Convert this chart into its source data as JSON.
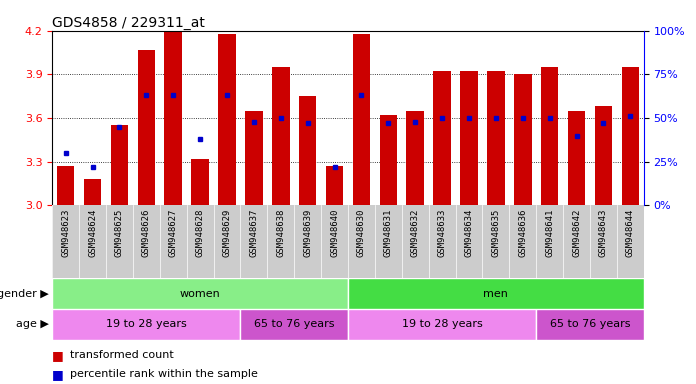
{
  "title": "GDS4858 / 229311_at",
  "samples": [
    "GSM948623",
    "GSM948624",
    "GSM948625",
    "GSM948626",
    "GSM948627",
    "GSM948628",
    "GSM948629",
    "GSM948637",
    "GSM948638",
    "GSM948639",
    "GSM948640",
    "GSM948630",
    "GSM948631",
    "GSM948632",
    "GSM948633",
    "GSM948634",
    "GSM948635",
    "GSM948636",
    "GSM948641",
    "GSM948642",
    "GSM948643",
    "GSM948644"
  ],
  "bar_heights": [
    3.27,
    3.18,
    3.55,
    4.07,
    4.19,
    3.32,
    4.18,
    3.65,
    3.95,
    3.75,
    3.27,
    4.18,
    3.62,
    3.65,
    3.92,
    3.92,
    3.92,
    3.9,
    3.95,
    3.65,
    3.68,
    3.95
  ],
  "blue_dot_percentiles": [
    30,
    22,
    45,
    63,
    63,
    38,
    63,
    48,
    50,
    47,
    22,
    63,
    47,
    48,
    50,
    50,
    50,
    50,
    50,
    40,
    47,
    51
  ],
  "ylim": [
    3.0,
    4.2
  ],
  "y_ticks_left": [
    3.0,
    3.3,
    3.6,
    3.9,
    4.2
  ],
  "y_ticks_right": [
    0,
    25,
    50,
    75,
    100
  ],
  "bar_color": "#cc0000",
  "dot_color": "#0000cc",
  "bar_bottom": 3.0,
  "gender_groups": [
    {
      "label": "women",
      "start": 0,
      "end": 11,
      "color": "#88ee88"
    },
    {
      "label": "men",
      "start": 11,
      "end": 22,
      "color": "#44dd44"
    }
  ],
  "age_groups": [
    {
      "label": "19 to 28 years",
      "start": 0,
      "end": 7,
      "color": "#ee88ee"
    },
    {
      "label": "65 to 76 years",
      "start": 7,
      "end": 11,
      "color": "#cc55cc"
    },
    {
      "label": "19 to 28 years",
      "start": 11,
      "end": 18,
      "color": "#ee88ee"
    },
    {
      "label": "65 to 76 years",
      "start": 18,
      "end": 22,
      "color": "#cc55cc"
    }
  ],
  "legend_items": [
    {
      "label": "transformed count",
      "color": "#cc0000"
    },
    {
      "label": "percentile rank within the sample",
      "color": "#0000cc"
    }
  ],
  "xtick_bg": "#cccccc",
  "title_fontsize": 10,
  "tick_fontsize": 6.5,
  "label_fontsize": 8,
  "annot_fontsize": 8
}
